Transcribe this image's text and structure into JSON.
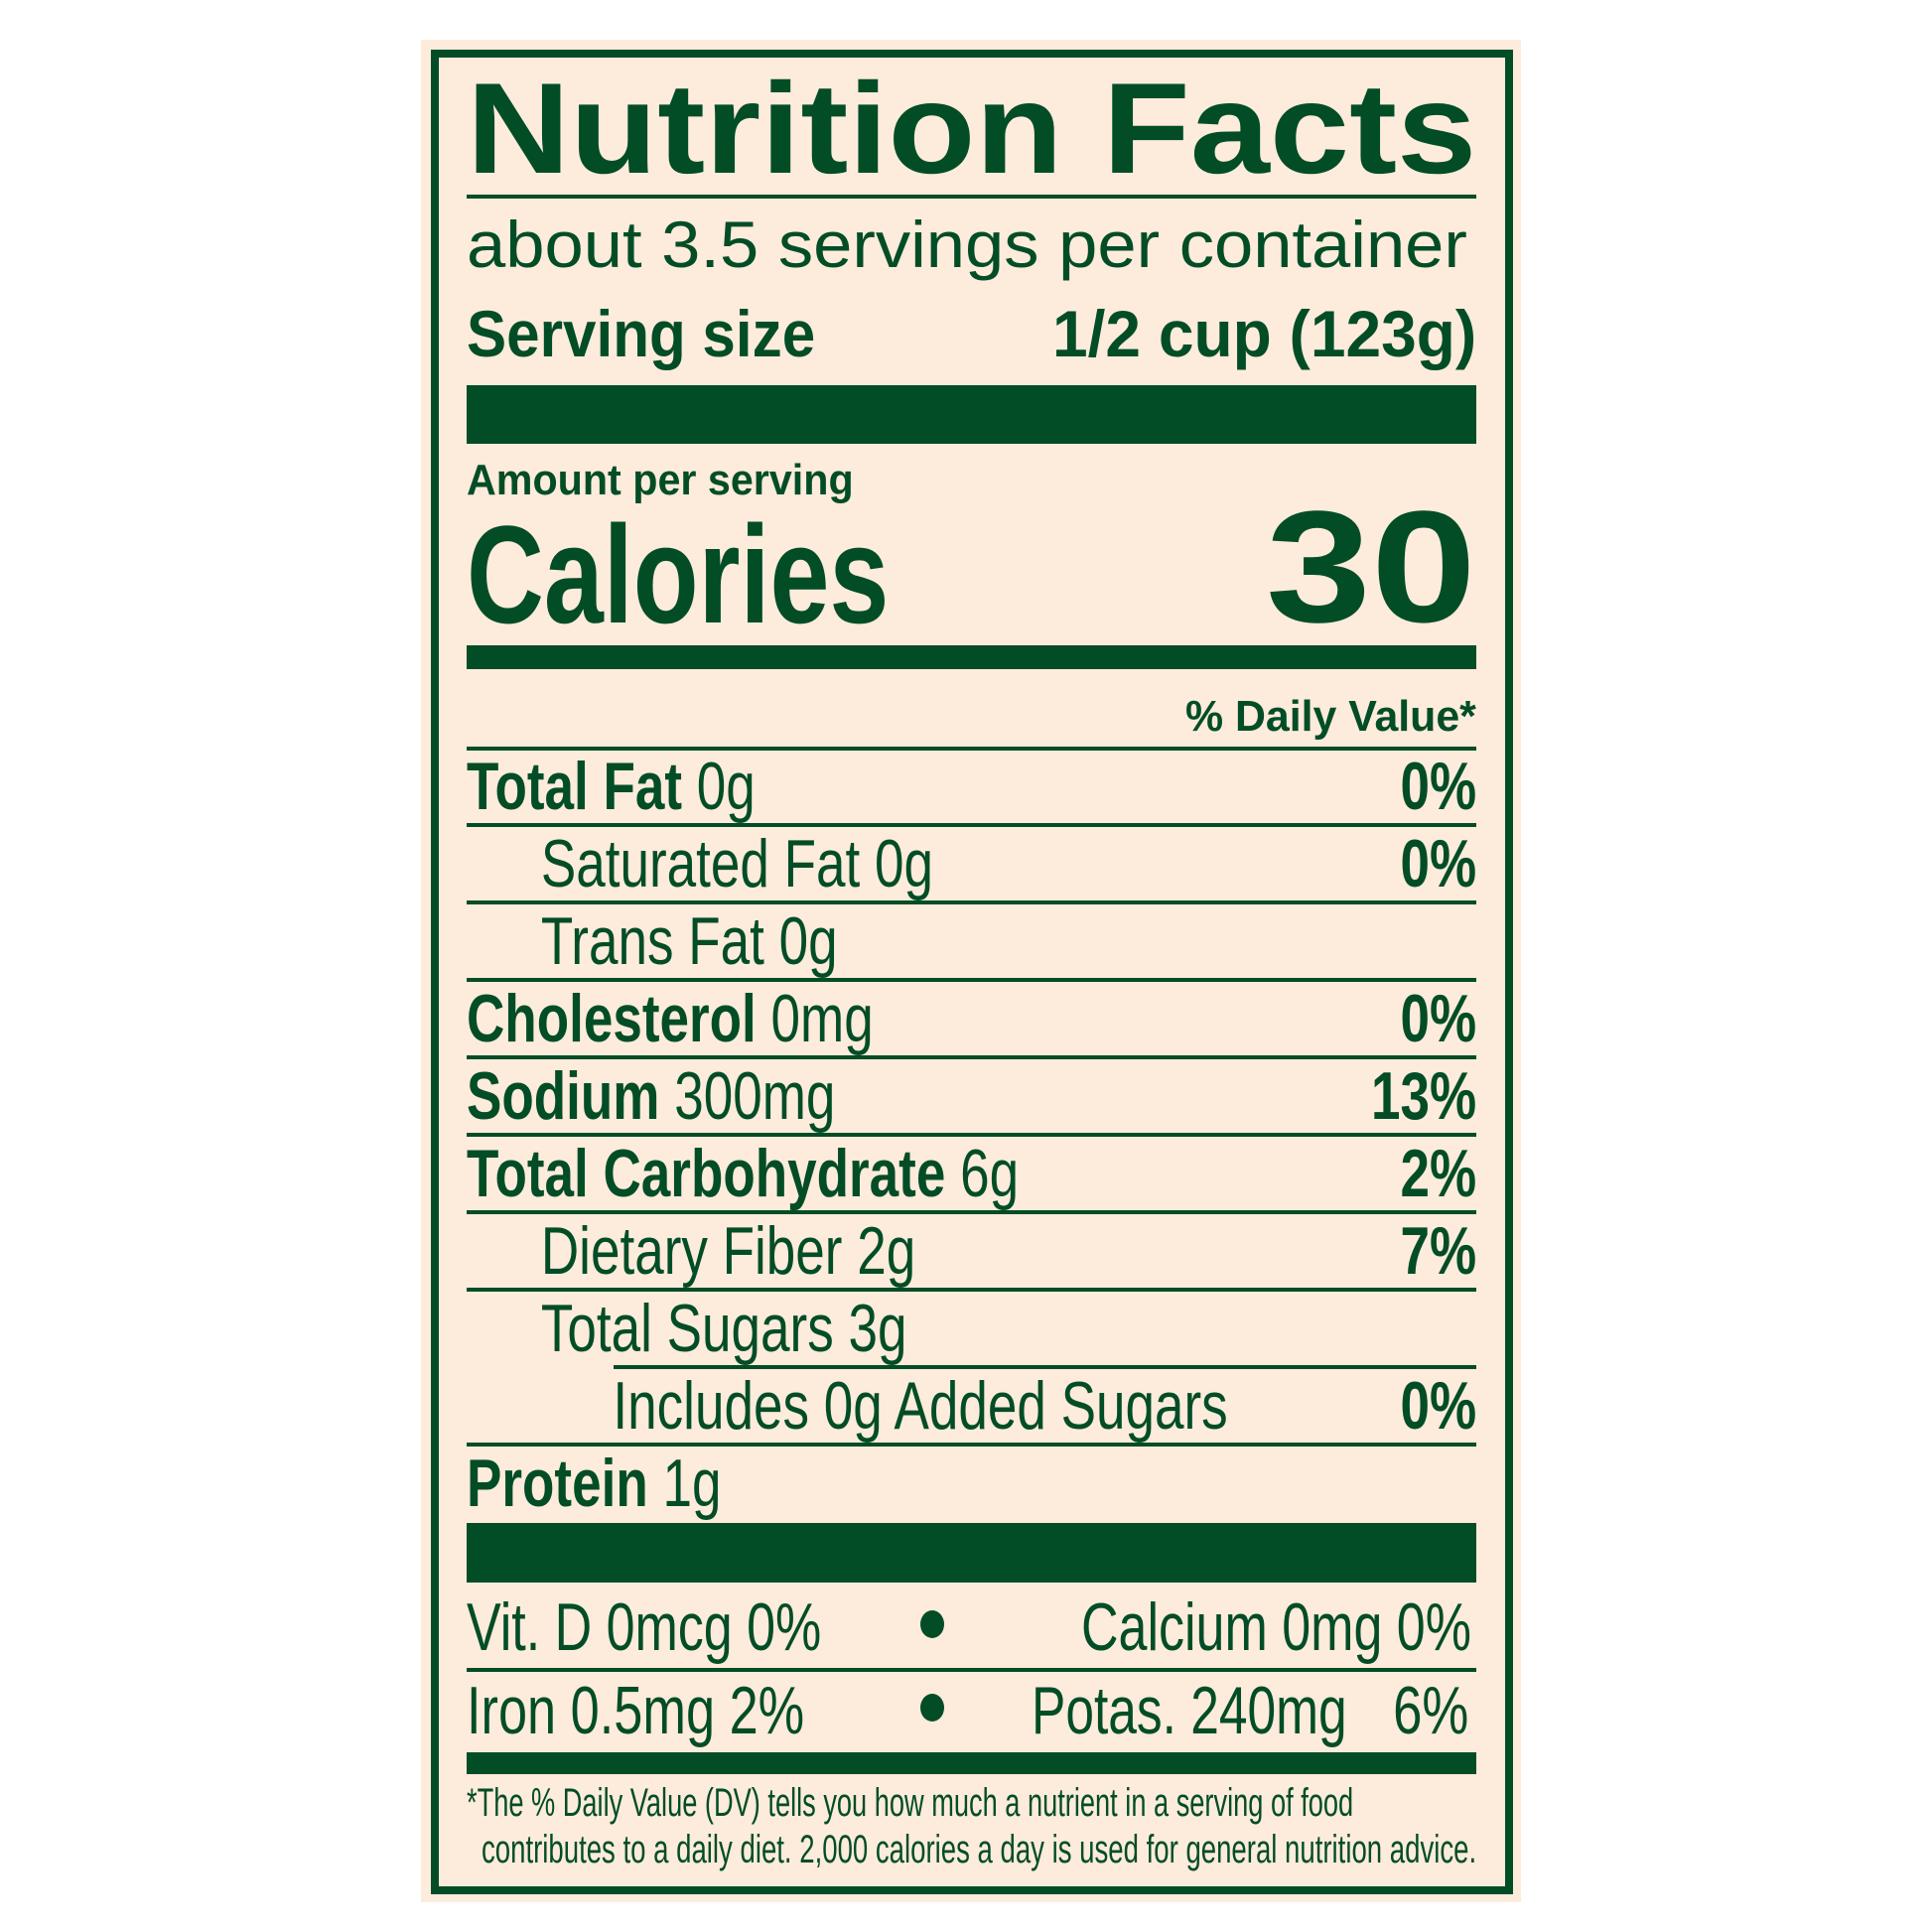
{
  "label": {
    "title": "Nutrition Facts",
    "servings_per_container": "about 3.5 servings per container",
    "serving_size_label": "Serving size",
    "serving_size_value": "1/2 cup (123g)",
    "amount_per_serving": "Amount per serving",
    "calories_label": "Calories",
    "calories_value": "30",
    "daily_value_header": "% Daily Value*",
    "nutrients": [
      {
        "name": "Total Fat",
        "amount": "0g",
        "dv": "0%"
      },
      {
        "name": "Saturated Fat",
        "amount": "0g",
        "dv": "0%"
      },
      {
        "name": "Trans Fat",
        "amount": "0g",
        "dv": ""
      },
      {
        "name": "Cholesterol",
        "amount": "0mg",
        "dv": "0%"
      },
      {
        "name": "Sodium",
        "amount": "300mg",
        "dv": "13%"
      },
      {
        "name": "Total Carbohydrate",
        "amount": "6g",
        "dv": "2%"
      },
      {
        "name": "Dietary Fiber",
        "amount": "2g",
        "dv": "7%"
      },
      {
        "name": "Total Sugars",
        "amount": "3g",
        "dv": ""
      },
      {
        "name": "Includes 0g Added Sugars",
        "amount": "",
        "dv": "0%"
      },
      {
        "name": "Protein",
        "amount": "1g",
        "dv": ""
      }
    ],
    "micronutrients": {
      "vit_d": "Vit. D 0mcg 0%",
      "calcium": "Calcium 0mg 0%",
      "iron": "Iron 0.5mg 2%",
      "potassium_name": "Potas. 240mg",
      "potassium_dv": "6%"
    },
    "footnote_line1": "*The % Daily Value (DV) tells you how much a nutrient in a serving of food",
    "footnote_line2": "contributes to a daily diet. 2,000 calories a day is used for general nutrition advice."
  },
  "colors": {
    "ink": "#024d26",
    "background": "#fdebdc"
  }
}
